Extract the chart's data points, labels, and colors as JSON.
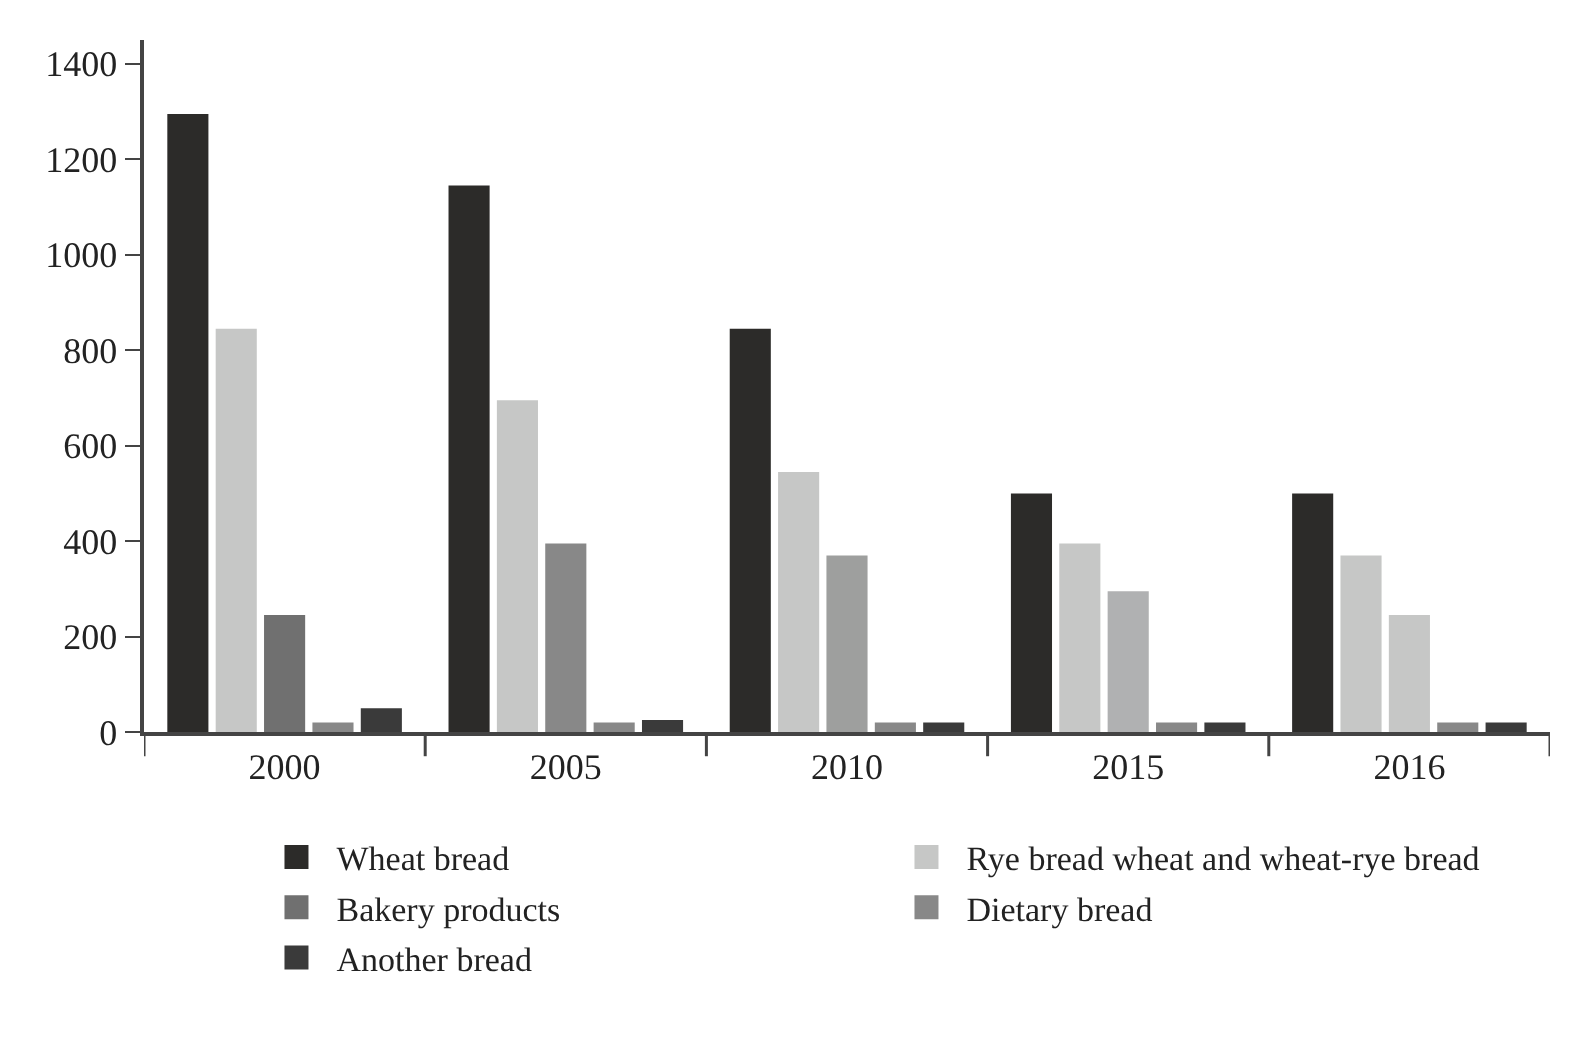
{
  "chart_data": {
    "type": "bar",
    "categories": [
      "2000",
      "2005",
      "2010",
      "2015",
      "2016"
    ],
    "series": [
      {
        "name": "Wheat bread",
        "color": "#2c2b29",
        "values": [
          1295,
          1145,
          845,
          500,
          500
        ]
      },
      {
        "name": "Rye bread wheat and wheat-rye bread",
        "color": "#c6c7c6",
        "values": [
          845,
          695,
          545,
          395,
          370
        ]
      },
      {
        "name": "Bakery products",
        "color": "#707070",
        "colors": [
          "#707070",
          "#888888",
          "#9e9f9e",
          "#b0b1b2",
          "#c6c7c6"
        ],
        "values": [
          245,
          395,
          370,
          295,
          245
        ]
      },
      {
        "name": "Dietary bread",
        "color": "#888888",
        "values": [
          20,
          20,
          20,
          20,
          20
        ]
      },
      {
        "name": "Another bread",
        "color": "#3a3a3a",
        "values": [
          50,
          25,
          20,
          20,
          20
        ]
      }
    ],
    "ylim": [
      0,
      1450
    ],
    "yticks": [
      0,
      200,
      400,
      600,
      800,
      1000,
      1200,
      1400
    ],
    "legend": "bottom"
  }
}
